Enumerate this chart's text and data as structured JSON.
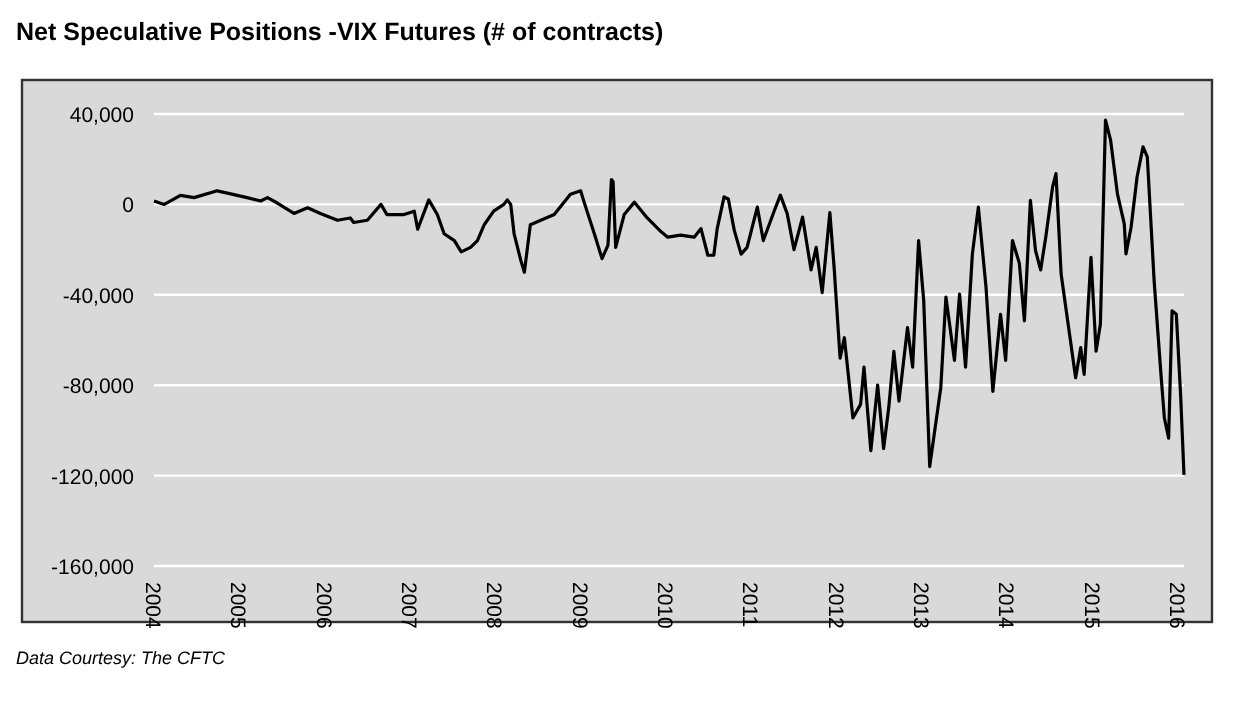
{
  "chart_data": {
    "type": "line",
    "title": "Net Speculative Positions -VIX Futures (# of contracts)",
    "annotations": [
      "Data Courtesy: The CFTC"
    ],
    "xlim": [
      2004,
      2016.07
    ],
    "xticks": [
      2004,
      2005,
      2006,
      2007,
      2008,
      2009,
      2010,
      2011,
      2012,
      2013,
      2014,
      2015,
      2016
    ],
    "ylim": [
      -160000,
      40000
    ],
    "yticks": [
      {
        "value": 40000,
        "label": "40,000"
      },
      0,
      {
        "value": -40000,
        "label": "-40,000"
      },
      {
        "value": -80000,
        "label": "-80,000"
      },
      {
        "value": -120000,
        "label": "-120,000"
      },
      {
        "value": -160000,
        "label": "-160,000"
      }
    ],
    "grid": "y",
    "marker": "none",
    "line_style": "solid",
    "series": [
      {
        "color": "#000000",
        "x": [
          2004.0,
          2004.12,
          2004.31,
          2004.47,
          2004.74,
          2004.86,
          2005.09,
          2005.25,
          2005.33,
          2005.45,
          2005.64,
          2005.8,
          2005.95,
          2006.15,
          2006.3,
          2006.34,
          2006.5,
          2006.66,
          2006.73,
          2006.93,
          2007.05,
          2007.09,
          2007.22,
          2007.32,
          2007.4,
          2007.52,
          2007.6,
          2007.71,
          2007.79,
          2007.87,
          2007.98,
          2008.1,
          2008.14,
          2008.18,
          2008.22,
          2008.3,
          2008.34,
          2008.41,
          2008.69,
          2008.88,
          2009.0,
          2009.04,
          2009.16,
          2009.25,
          2009.32,
          2009.36,
          2009.38,
          2009.41,
          2009.51,
          2009.63,
          2009.78,
          2009.94,
          2010.02,
          2010.17,
          2010.33,
          2010.41,
          2010.49,
          2010.56,
          2010.6,
          2010.68,
          2010.73,
          2010.8,
          2010.88,
          2010.95,
          2011.07,
          2011.14,
          2011.27,
          2011.34,
          2011.42,
          2011.5,
          2011.6,
          2011.7,
          2011.76,
          2011.83,
          2011.92,
          2011.97,
          2012.04,
          2012.09,
          2012.19,
          2012.28,
          2012.32,
          2012.4,
          2012.48,
          2012.55,
          2012.61,
          2012.67,
          2012.73,
          2012.83,
          2012.89,
          2012.96,
          2013.02,
          2013.09,
          2013.22,
          2013.28,
          2013.38,
          2013.44,
          2013.51,
          2013.59,
          2013.66,
          2013.75,
          2013.83,
          2013.92,
          2013.98,
          2014.06,
          2014.14,
          2014.2,
          2014.27,
          2014.33,
          2014.39,
          2014.45,
          2014.53,
          2014.57,
          2014.63,
          2014.74,
          2014.8,
          2014.86,
          2014.9,
          2014.98,
          2015.04,
          2015.09,
          2015.15,
          2015.21,
          2015.29,
          2015.37,
          2015.39,
          2015.45,
          2015.52,
          2015.59,
          2015.64,
          2015.72,
          2015.8,
          2015.84,
          2015.89,
          2015.93,
          2015.98,
          2016.03,
          2016.07
        ],
        "values": [
          1500,
          0,
          4000,
          3000,
          6000,
          5000,
          3000,
          1500,
          3000,
          500,
          -4000,
          -1500,
          -4000,
          -7000,
          -6000,
          -8000,
          -7000,
          0,
          -4500,
          -4500,
          -3000,
          -11000,
          2000,
          -4500,
          -13000,
          -16000,
          -21000,
          -19000,
          -16000,
          -9000,
          -3000,
          0,
          2000,
          0,
          -13000,
          -25000,
          -30000,
          -9000,
          -4500,
          4500,
          6000,
          1000,
          -13000,
          -24000,
          -18000,
          11000,
          10000,
          -19000,
          -4500,
          1000,
          -6000,
          -12000,
          -14500,
          -13600,
          -14500,
          -10700,
          -22500,
          -22500,
          -10700,
          3300,
          2400,
          -11500,
          -22000,
          -19000,
          -1200,
          -16000,
          -2700,
          4100,
          -4100,
          -20000,
          -5600,
          -29000,
          -19000,
          -39000,
          -3600,
          -28000,
          -68000,
          -59000,
          -94500,
          -88500,
          -72000,
          -109000,
          -80000,
          -108000,
          -90000,
          -65000,
          -87000,
          -54500,
          -72000,
          -16000,
          -42700,
          -116000,
          -81000,
          -41000,
          -69000,
          -39700,
          -72000,
          -22000,
          -1200,
          -36700,
          -82700,
          -48600,
          -69000,
          -16000,
          -26000,
          -51500,
          1800,
          -20400,
          -29000,
          -14500,
          7700,
          13600,
          -30800,
          -60400,
          -76700,
          -63400,
          -75200,
          -23400,
          -64900,
          -53000,
          37300,
          28400,
          4700,
          -8600,
          -21900,
          -10100,
          12100,
          25500,
          21000,
          -33800,
          -75200,
          -94500,
          -103400,
          -47100,
          -48600,
          -84100,
          -119700
        ]
      }
    ]
  }
}
